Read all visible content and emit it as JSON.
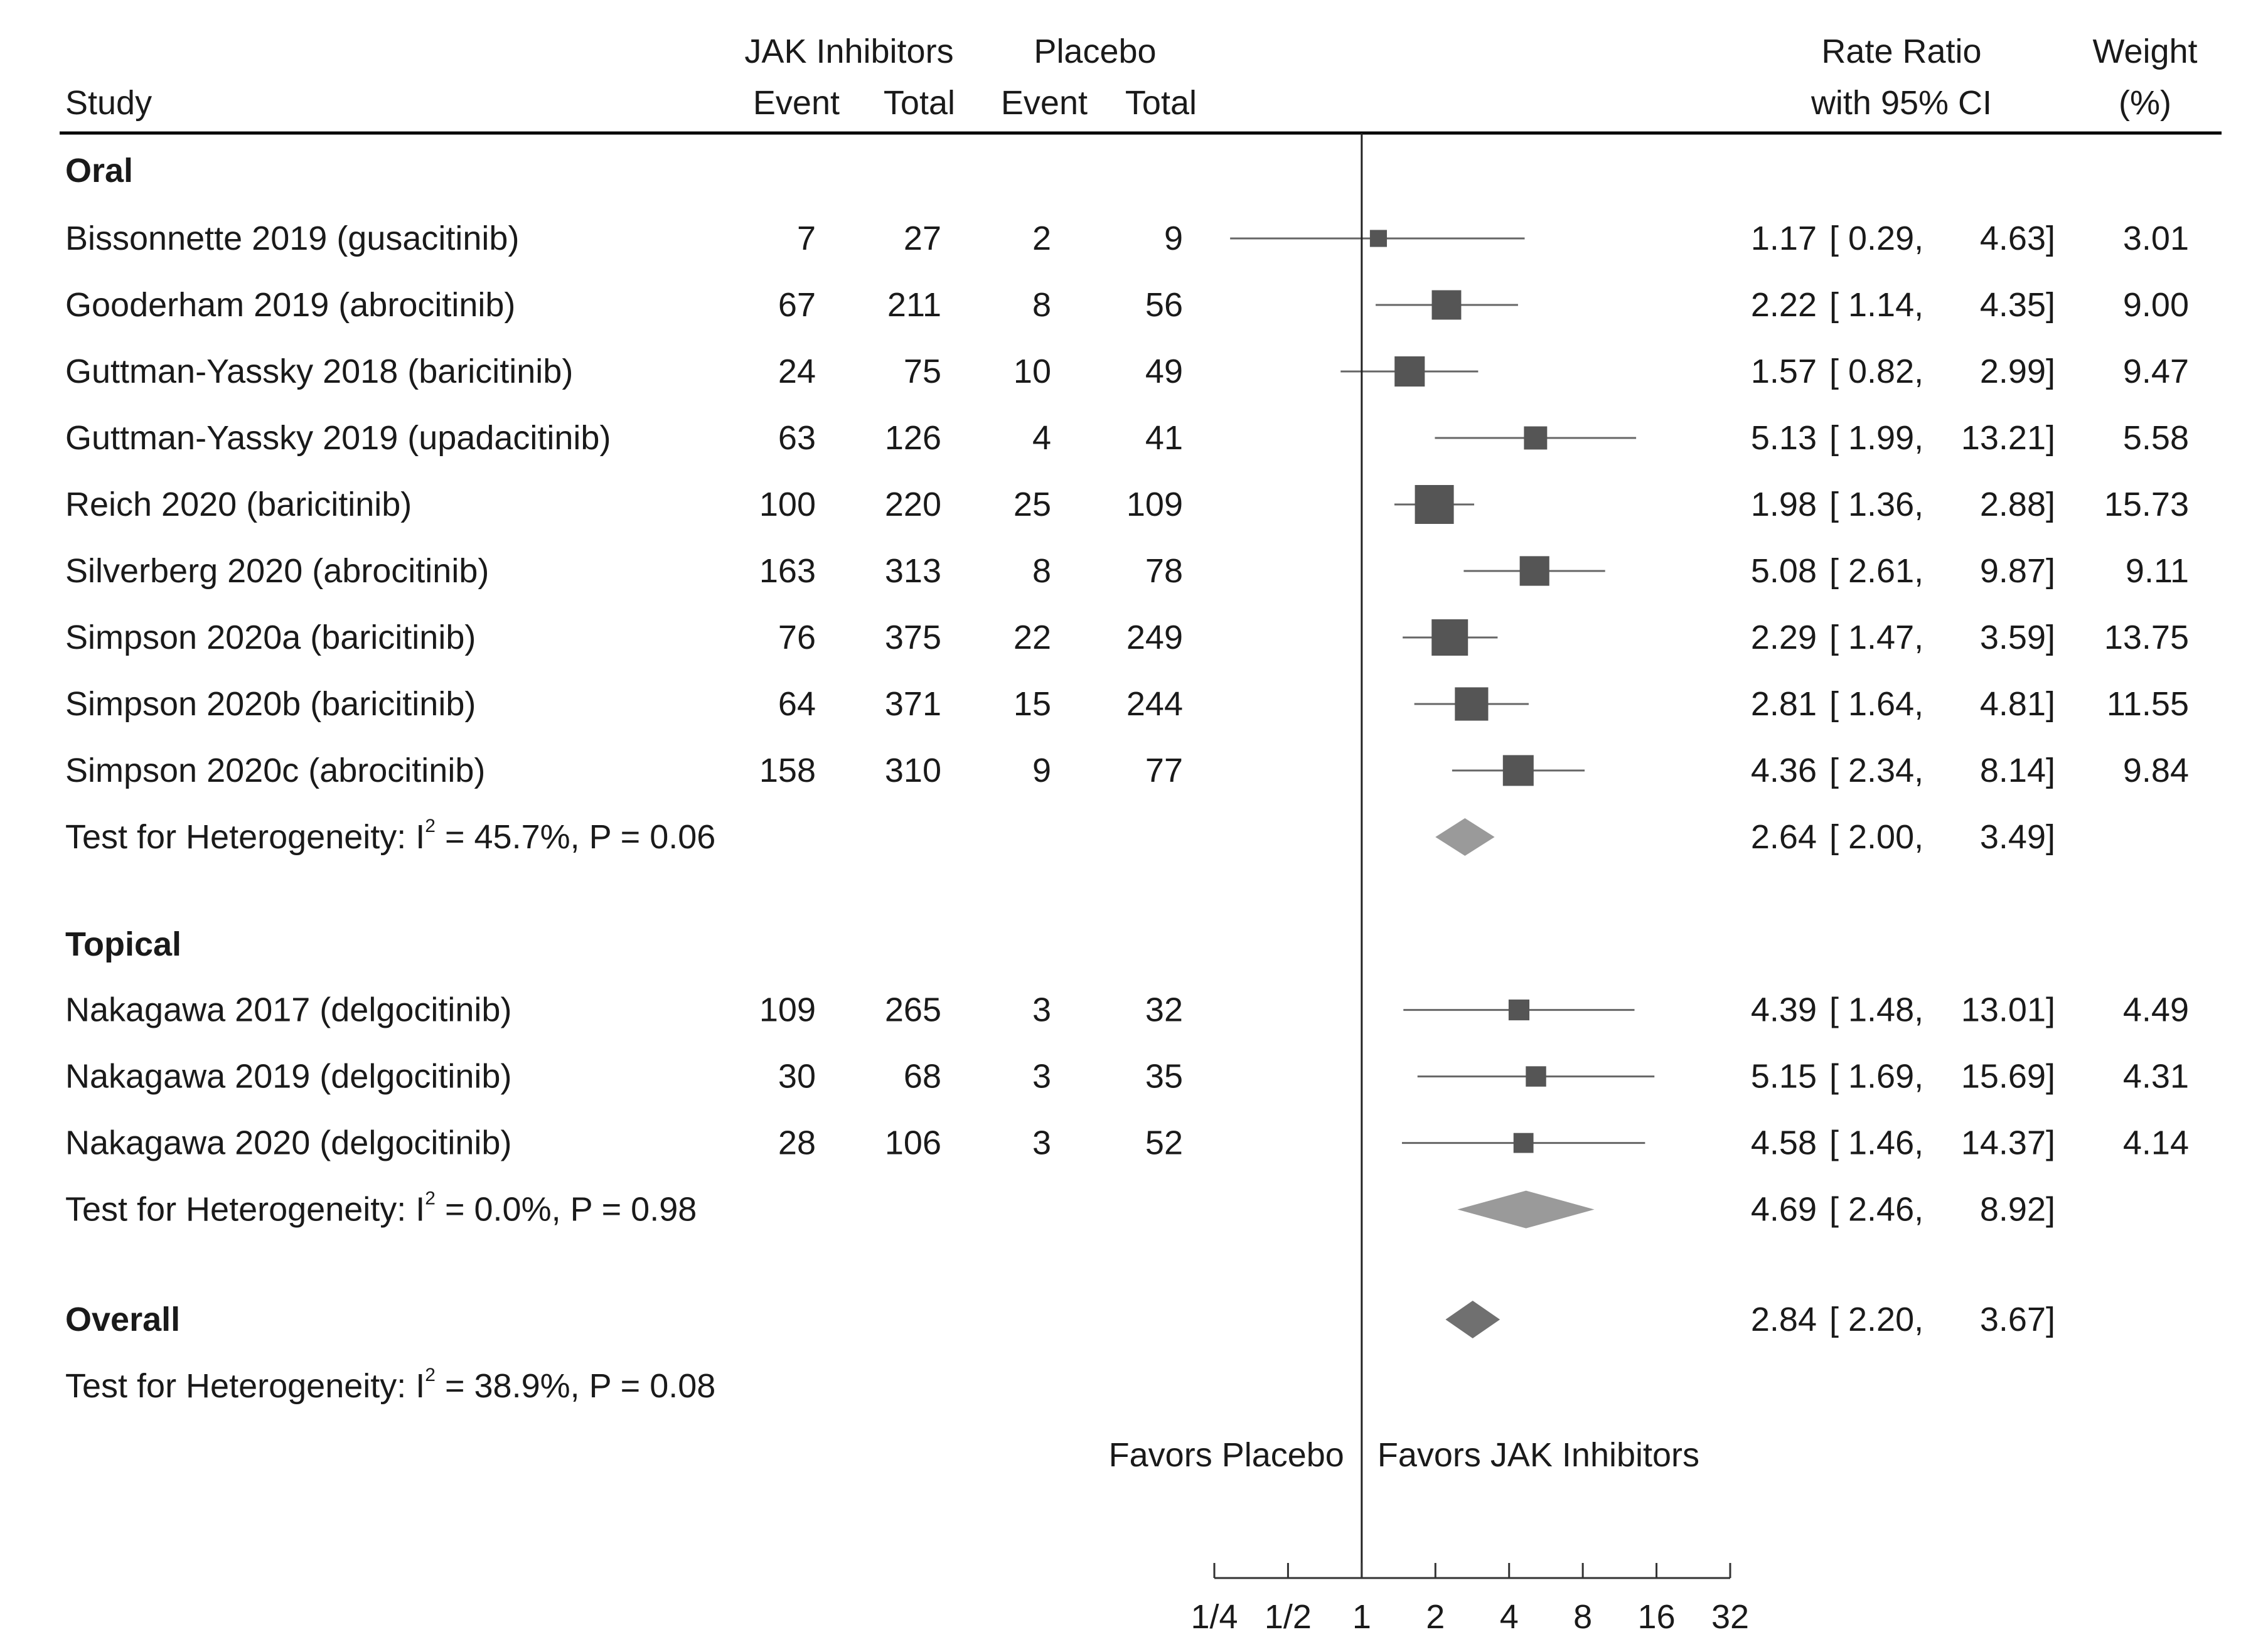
{
  "chart_data": {
    "type": "forest",
    "header": {
      "study": "Study",
      "jak_group": "JAK Inhibitors",
      "placebo_group": "Placebo",
      "event": "Event",
      "total": "Total",
      "rr_line1": "Rate Ratio",
      "rr_line2": "with 95% CI",
      "weight_line1": "Weight",
      "weight_line2": "(%)"
    },
    "groups": [
      {
        "name": "Oral",
        "studies": [
          {
            "study": "Bissonnette 2019 (gusacitinib)",
            "jak_event": "7",
            "jak_total": "27",
            "pbo_event": "2",
            "pbo_total": "9",
            "rr": 1.17,
            "lo": 0.29,
            "hi": 4.63,
            "rr_text": "1.17",
            "ci_lo_text": "[ 0.29,",
            "ci_hi_text": "4.63]",
            "weight": 3.01,
            "weight_text": "3.01"
          },
          {
            "study": "Gooderham 2019 (abrocitinib)",
            "jak_event": "67",
            "jak_total": "211",
            "pbo_event": "8",
            "pbo_total": "56",
            "rr": 2.22,
            "lo": 1.14,
            "hi": 4.35,
            "rr_text": "2.22",
            "ci_lo_text": "[ 1.14,",
            "ci_hi_text": "4.35]",
            "weight": 9.0,
            "weight_text": "9.00"
          },
          {
            "study": "Guttman-Yassky 2018 (baricitinib)",
            "jak_event": "24",
            "jak_total": "75",
            "pbo_event": "10",
            "pbo_total": "49",
            "rr": 1.57,
            "lo": 0.82,
            "hi": 2.99,
            "rr_text": "1.57",
            "ci_lo_text": "[ 0.82,",
            "ci_hi_text": "2.99]",
            "weight": 9.47,
            "weight_text": "9.47"
          },
          {
            "study": "Guttman-Yassky 2019 (upadacitinib)",
            "jak_event": "63",
            "jak_total": "126",
            "pbo_event": "4",
            "pbo_total": "41",
            "rr": 5.13,
            "lo": 1.99,
            "hi": 13.21,
            "rr_text": "5.13",
            "ci_lo_text": "[ 1.99,",
            "ci_hi_text": "13.21]",
            "weight": 5.58,
            "weight_text": "5.58"
          },
          {
            "study": "Reich 2020 (baricitinib)",
            "jak_event": "100",
            "jak_total": "220",
            "pbo_event": "25",
            "pbo_total": "109",
            "rr": 1.98,
            "lo": 1.36,
            "hi": 2.88,
            "rr_text": "1.98",
            "ci_lo_text": "[ 1.36,",
            "ci_hi_text": "2.88]",
            "weight": 15.73,
            "weight_text": "15.73"
          },
          {
            "study": "Silverberg 2020 (abrocitinib)",
            "jak_event": "163",
            "jak_total": "313",
            "pbo_event": "8",
            "pbo_total": "78",
            "rr": 5.08,
            "lo": 2.61,
            "hi": 9.87,
            "rr_text": "5.08",
            "ci_lo_text": "[ 2.61,",
            "ci_hi_text": "9.87]",
            "weight": 9.11,
            "weight_text": "9.11"
          },
          {
            "study": "Simpson 2020a (baricitinib)",
            "jak_event": "76",
            "jak_total": "375",
            "pbo_event": "22",
            "pbo_total": "249",
            "rr": 2.29,
            "lo": 1.47,
            "hi": 3.59,
            "rr_text": "2.29",
            "ci_lo_text": "[ 1.47,",
            "ci_hi_text": "3.59]",
            "weight": 13.75,
            "weight_text": "13.75"
          },
          {
            "study": "Simpson 2020b (baricitinib)",
            "jak_event": "64",
            "jak_total": "371",
            "pbo_event": "15",
            "pbo_total": "244",
            "rr": 2.81,
            "lo": 1.64,
            "hi": 4.81,
            "rr_text": "2.81",
            "ci_lo_text": "[ 1.64,",
            "ci_hi_text": "4.81]",
            "weight": 11.55,
            "weight_text": "11.55"
          },
          {
            "study": "Simpson 2020c (abrocitinib)",
            "jak_event": "158",
            "jak_total": "310",
            "pbo_event": "9",
            "pbo_total": "77",
            "rr": 4.36,
            "lo": 2.34,
            "hi": 8.14,
            "rr_text": "4.36",
            "ci_lo_text": "[ 2.34,",
            "ci_hi_text": "8.14]",
            "weight": 9.84,
            "weight_text": "9.84"
          }
        ],
        "summary": {
          "het_prefix": "Test for Heterogeneity: I",
          "het_sup": "2",
          "het_suffix": " = 45.7%, P = 0.06",
          "rr": 2.64,
          "lo": 2.0,
          "hi": 3.49,
          "rr_text": "2.64",
          "ci_lo_text": "[ 2.00,",
          "ci_hi_text": "3.49]"
        }
      },
      {
        "name": "Topical",
        "studies": [
          {
            "study": "Nakagawa 2017 (delgocitinib)",
            "jak_event": "109",
            "jak_total": "265",
            "pbo_event": "3",
            "pbo_total": "32",
            "rr": 4.39,
            "lo": 1.48,
            "hi": 13.01,
            "rr_text": "4.39",
            "ci_lo_text": "[ 1.48,",
            "ci_hi_text": "13.01]",
            "weight": 4.49,
            "weight_text": "4.49"
          },
          {
            "study": "Nakagawa 2019 (delgocitinib)",
            "jak_event": "30",
            "jak_total": "68",
            "pbo_event": "3",
            "pbo_total": "35",
            "rr": 5.15,
            "lo": 1.69,
            "hi": 15.69,
            "rr_text": "5.15",
            "ci_lo_text": "[ 1.69,",
            "ci_hi_text": "15.69]",
            "weight": 4.31,
            "weight_text": "4.31"
          },
          {
            "study": "Nakagawa 2020 (delgocitinib)",
            "jak_event": "28",
            "jak_total": "106",
            "pbo_event": "3",
            "pbo_total": "52",
            "rr": 4.58,
            "lo": 1.46,
            "hi": 14.37,
            "rr_text": "4.58",
            "ci_lo_text": "[ 1.46,",
            "ci_hi_text": "14.37]",
            "weight": 4.14,
            "weight_text": "4.14"
          }
        ],
        "summary": {
          "het_prefix": "Test for Heterogeneity: I",
          "het_sup": "2",
          "het_suffix": " = 0.0%, P = 0.98",
          "rr": 4.69,
          "lo": 2.46,
          "hi": 8.92,
          "rr_text": "4.69",
          "ci_lo_text": "[ 2.46,",
          "ci_hi_text": "8.92]"
        }
      }
    ],
    "overall": {
      "label": "Overall",
      "rr": 2.84,
      "lo": 2.2,
      "hi": 3.67,
      "rr_text": "2.84",
      "ci_lo_text": "[ 2.20,",
      "ci_hi_text": "3.67]",
      "het_prefix": "Test for Heterogeneity: I",
      "het_sup": "2",
      "het_suffix": " = 38.9%, P = 0.08"
    },
    "favors_left": "Favors Placebo",
    "favors_right": "Favors JAK Inhibitors",
    "x_scale": "log2",
    "xlim": [
      0.25,
      32
    ],
    "ticks": [
      {
        "value": 0.25,
        "label": "1/4"
      },
      {
        "value": 0.5,
        "label": "1/2"
      },
      {
        "value": 1,
        "label": "1"
      },
      {
        "value": 2,
        "label": "2"
      },
      {
        "value": 4,
        "label": "4"
      },
      {
        "value": 8,
        "label": "8"
      },
      {
        "value": 16,
        "label": "16"
      },
      {
        "value": 32,
        "label": "32"
      }
    ],
    "reference_line": 1,
    "colors": {
      "text": "#1a1a1a",
      "study_marker": "#555555",
      "ci_line": "#666666",
      "group_diamond": "#9a9a9a",
      "overall_diamond": "#707070",
      "axis": "#333333"
    }
  }
}
